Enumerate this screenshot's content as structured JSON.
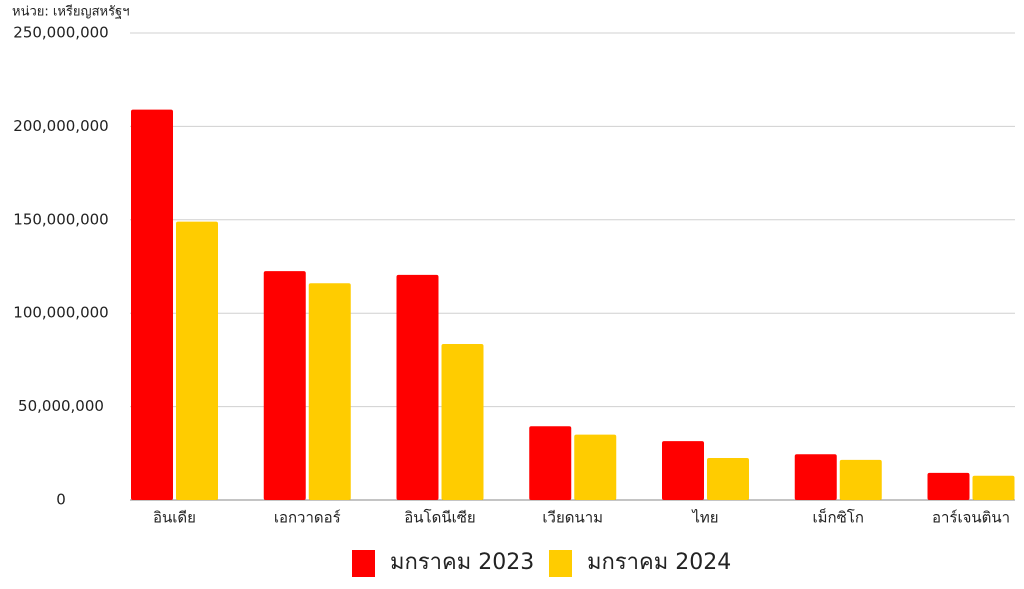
{
  "chart_data": {
    "type": "bar",
    "subtitle": "หน่วย: เหรียญสหรัฐฯ",
    "categories": [
      "อินเดีย",
      "เอกวาดอร์",
      "อินโดนีเซีย",
      "เวียดนาม",
      "ไทย",
      "เม็กซิโก",
      "อาร์เจนตินา"
    ],
    "series": [
      {
        "name": "มกราคม 2023",
        "color": "#ff0000",
        "values": [
          209000000,
          122500000,
          120500000,
          39500000,
          31500000,
          24500000,
          14500000
        ]
      },
      {
        "name": "มกราคม 2024",
        "color": "#ffcc00",
        "values": [
          149000000,
          116000000,
          83500000,
          35000000,
          22500000,
          21500000,
          13000000
        ]
      }
    ],
    "ylim": [
      0,
      250000000
    ],
    "yticks": [
      0,
      {
        "value": 50000000,
        "label": "50,000,000"
      },
      {
        "value": 100000000,
        "label": "100,000,000"
      },
      {
        "value": 150000000,
        "label": "150,000,000"
      },
      {
        "value": 200000000,
        "label": "200,000,000"
      },
      {
        "value": 250000000,
        "label": "250,000,000"
      }
    ],
    "grid": true,
    "legend": "bottom"
  }
}
